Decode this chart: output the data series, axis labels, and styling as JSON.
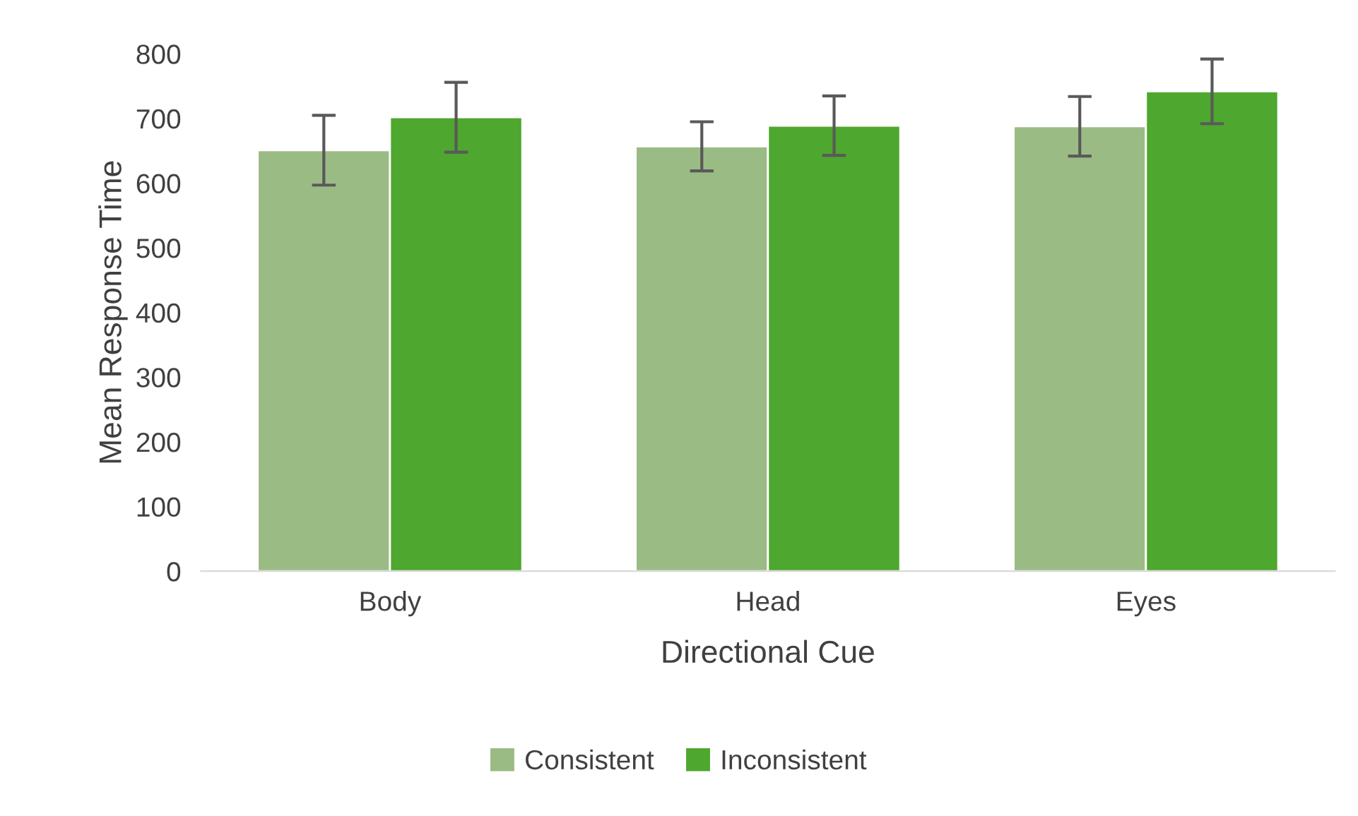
{
  "chart_data": {
    "type": "bar",
    "xlabel": "Directional Cue",
    "ylabel": "Mean Response Time",
    "categories": [
      "Body",
      "Head",
      "Eyes"
    ],
    "series": [
      {
        "name": "Consistent",
        "color": "#9bbb84",
        "values": [
          651,
          657,
          688
        ],
        "errors": [
          54,
          38,
          46
        ]
      },
      {
        "name": "Inconsistent",
        "color": "#4ea72e",
        "values": [
          702,
          689,
          742
        ],
        "errors": [
          54,
          46,
          50
        ]
      }
    ],
    "ylim": [
      0,
      800
    ],
    "yticks": [
      0,
      100,
      200,
      300,
      400,
      500,
      600,
      700,
      800
    ],
    "grid": false,
    "legend": "bottom"
  }
}
